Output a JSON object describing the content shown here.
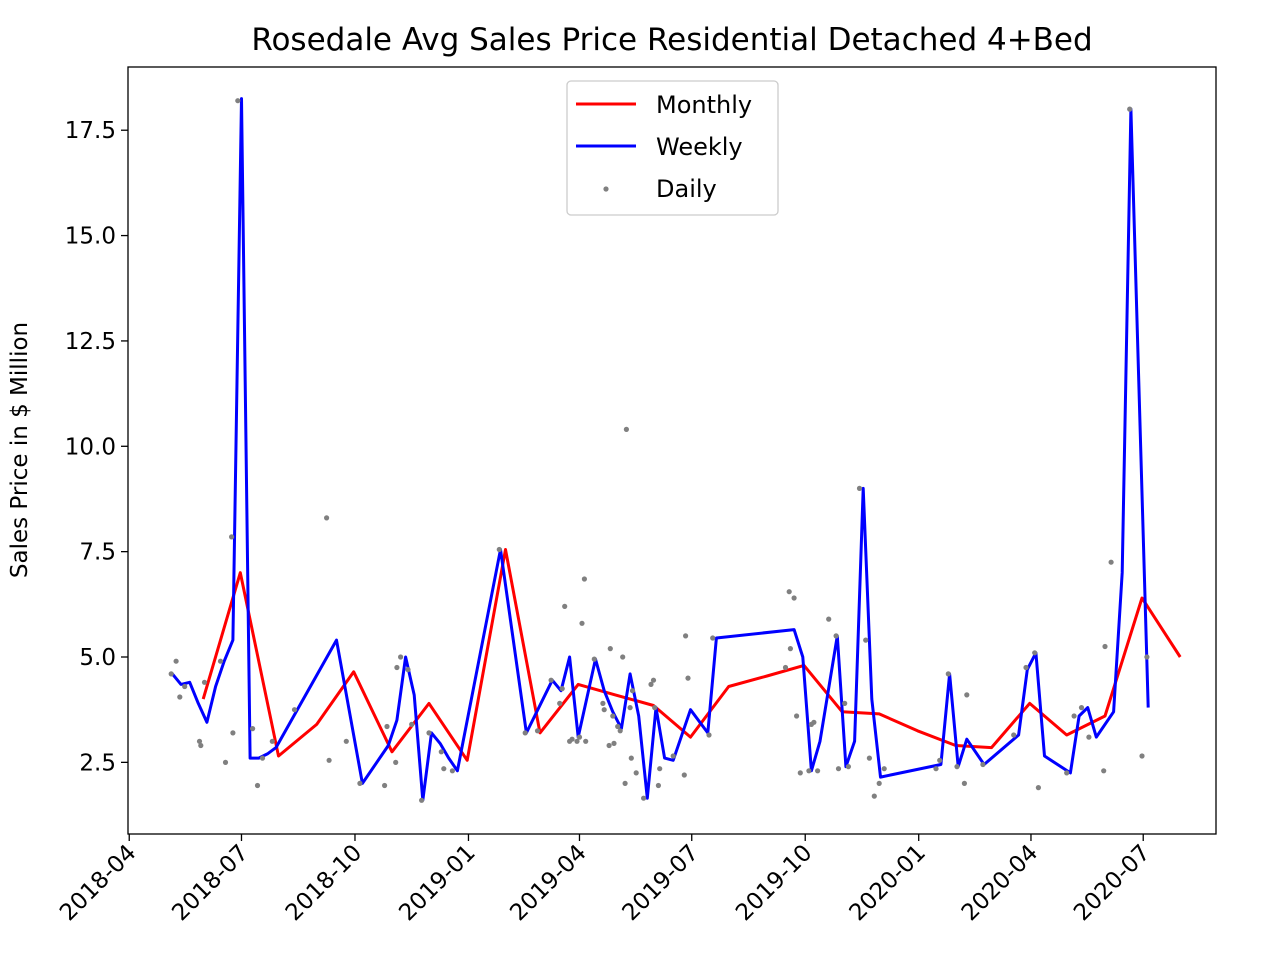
{
  "chart_data": {
    "type": "line",
    "title": "Rosedale Avg Sales Price Residential Detached 4+Bed",
    "xlabel": "",
    "ylabel": "Sales Price in $ Million",
    "xlim": [
      "2018-03-31",
      "2020-08-29"
    ],
    "ylim": [
      0.8,
      19.0
    ],
    "grid": false,
    "legend_position": "top-center",
    "x_ticks": [
      "2018-04",
      "2018-07",
      "2018-10",
      "2019-01",
      "2019-04",
      "2019-07",
      "2019-10",
      "2020-01",
      "2020-04",
      "2020-07"
    ],
    "x_tick_dates": [
      "2018-04-01",
      "2018-07-01",
      "2018-10-01",
      "2019-01-01",
      "2019-04-01",
      "2019-07-01",
      "2019-10-01",
      "2020-01-01",
      "2020-04-01",
      "2020-07-01"
    ],
    "y_ticks": [
      2.5,
      5.0,
      7.5,
      10.0,
      12.5,
      15.0,
      17.5
    ],
    "y_tick_labels": [
      "2.5",
      "5.0",
      "7.5",
      "10.0",
      "12.5",
      "15.0",
      "17.5"
    ],
    "series": [
      {
        "name": "Monthly",
        "kind": "line",
        "color": "#ff0000",
        "points": [
          [
            "2018-05-31",
            4.0
          ],
          [
            "2018-06-30",
            7.0
          ],
          [
            "2018-07-31",
            2.65
          ],
          [
            "2018-08-31",
            3.4
          ],
          [
            "2018-09-30",
            4.65
          ],
          [
            "2018-10-31",
            2.75
          ],
          [
            "2018-11-30",
            3.9
          ],
          [
            "2018-12-31",
            2.55
          ],
          [
            "2019-01-31",
            7.55
          ],
          [
            "2019-02-28",
            3.2
          ],
          [
            "2019-03-31",
            4.35
          ],
          [
            "2019-04-30",
            4.1
          ],
          [
            "2019-05-31",
            3.85
          ],
          [
            "2019-06-30",
            3.1
          ],
          [
            "2019-07-31",
            4.3
          ],
          [
            "2019-08-31",
            4.55
          ],
          [
            "2019-09-30",
            4.8
          ],
          [
            "2019-10-31",
            3.7
          ],
          [
            "2019-11-30",
            3.65
          ],
          [
            "2019-12-31",
            3.25
          ],
          [
            "2020-01-31",
            2.9
          ],
          [
            "2020-02-29",
            2.85
          ],
          [
            "2020-03-31",
            3.9
          ],
          [
            "2020-04-30",
            3.15
          ],
          [
            "2020-05-31",
            3.6
          ],
          [
            "2020-06-30",
            6.4
          ],
          [
            "2020-07-31",
            5.0
          ]
        ]
      },
      {
        "name": "Weekly",
        "kind": "line",
        "color": "#0000ff",
        "points": [
          [
            "2018-05-06",
            4.6
          ],
          [
            "2018-05-13",
            4.35
          ],
          [
            "2018-05-20",
            4.4
          ],
          [
            "2018-05-27",
            3.9
          ],
          [
            "2018-06-03",
            3.45
          ],
          [
            "2018-06-10",
            4.3
          ],
          [
            "2018-06-17",
            4.9
          ],
          [
            "2018-06-24",
            5.4
          ],
          [
            "2018-07-01",
            18.25
          ],
          [
            "2018-07-08",
            2.6
          ],
          [
            "2018-07-15",
            2.6
          ],
          [
            "2018-07-22",
            2.7
          ],
          [
            "2018-07-29",
            2.85
          ],
          [
            "2018-09-16",
            5.4
          ],
          [
            "2018-10-07",
            2.0
          ],
          [
            "2018-10-28",
            2.9
          ],
          [
            "2018-11-04",
            3.5
          ],
          [
            "2018-11-11",
            5.0
          ],
          [
            "2018-11-18",
            4.1
          ],
          [
            "2018-11-25",
            1.6
          ],
          [
            "2018-12-02",
            3.2
          ],
          [
            "2018-12-09",
            2.95
          ],
          [
            "2018-12-16",
            2.6
          ],
          [
            "2018-12-23",
            2.3
          ],
          [
            "2019-01-27",
            7.55
          ],
          [
            "2019-02-17",
            3.2
          ],
          [
            "2019-03-10",
            4.45
          ],
          [
            "2019-03-17",
            4.2
          ],
          [
            "2019-03-24",
            5.0
          ],
          [
            "2019-03-31",
            3.1
          ],
          [
            "2019-04-14",
            4.95
          ],
          [
            "2019-04-21",
            4.2
          ],
          [
            "2019-04-28",
            3.7
          ],
          [
            "2019-05-05",
            3.3
          ],
          [
            "2019-05-12",
            4.6
          ],
          [
            "2019-05-19",
            3.6
          ],
          [
            "2019-05-26",
            1.65
          ],
          [
            "2019-06-02",
            3.8
          ],
          [
            "2019-06-09",
            2.6
          ],
          [
            "2019-06-16",
            2.55
          ],
          [
            "2019-06-30",
            3.75
          ],
          [
            "2019-07-14",
            3.2
          ],
          [
            "2019-07-21",
            5.45
          ],
          [
            "2019-09-22",
            5.65
          ],
          [
            "2019-09-29",
            5.0
          ],
          [
            "2019-10-06",
            2.3
          ],
          [
            "2019-10-13",
            3.0
          ],
          [
            "2019-10-27",
            5.5
          ],
          [
            "2019-11-03",
            2.4
          ],
          [
            "2019-11-10",
            3.0
          ],
          [
            "2019-11-17",
            9.0
          ],
          [
            "2019-11-24",
            4.0
          ],
          [
            "2019-12-01",
            2.15
          ],
          [
            "2020-01-19",
            2.45
          ],
          [
            "2020-01-26",
            4.6
          ],
          [
            "2020-02-02",
            2.4
          ],
          [
            "2020-02-09",
            3.05
          ],
          [
            "2020-02-23",
            2.45
          ],
          [
            "2020-03-22",
            3.15
          ],
          [
            "2020-03-29",
            4.7
          ],
          [
            "2020-04-05",
            5.1
          ],
          [
            "2020-04-12",
            2.65
          ],
          [
            "2020-05-03",
            2.25
          ],
          [
            "2020-05-10",
            3.6
          ],
          [
            "2020-05-17",
            3.8
          ],
          [
            "2020-05-24",
            3.1
          ],
          [
            "2020-06-07",
            3.7
          ],
          [
            "2020-06-14",
            7.0
          ],
          [
            "2020-06-21",
            18.0
          ],
          [
            "2020-07-05",
            3.8
          ]
        ]
      },
      {
        "name": "Daily",
        "kind": "scatter",
        "color": "#808080",
        "points": [
          [
            "2018-05-05",
            4.6
          ],
          [
            "2018-05-09",
            4.9
          ],
          [
            "2018-05-12",
            4.05
          ],
          [
            "2018-05-16",
            4.3
          ],
          [
            "2018-05-28",
            3.0
          ],
          [
            "2018-05-29",
            2.9
          ],
          [
            "2018-06-01",
            4.4
          ],
          [
            "2018-06-14",
            4.9
          ],
          [
            "2018-06-18",
            2.5
          ],
          [
            "2018-06-23",
            7.85
          ],
          [
            "2018-06-24",
            3.2
          ],
          [
            "2018-06-28",
            18.2
          ],
          [
            "2018-07-10",
            3.3
          ],
          [
            "2018-07-14",
            1.95
          ],
          [
            "2018-07-18",
            2.6
          ],
          [
            "2018-07-26",
            3.0
          ],
          [
            "2018-08-13",
            3.75
          ],
          [
            "2018-09-08",
            8.3
          ],
          [
            "2018-09-10",
            2.55
          ],
          [
            "2018-09-24",
            3.0
          ],
          [
            "2018-10-05",
            2.0
          ],
          [
            "2018-10-25",
            1.95
          ],
          [
            "2018-10-27",
            3.35
          ],
          [
            "2018-11-03",
            2.5
          ],
          [
            "2018-11-04",
            4.75
          ],
          [
            "2018-11-07",
            5.0
          ],
          [
            "2018-11-13",
            4.7
          ],
          [
            "2018-11-16",
            3.4
          ],
          [
            "2018-11-24",
            1.6
          ],
          [
            "2018-11-30",
            3.2
          ],
          [
            "2018-12-10",
            2.75
          ],
          [
            "2018-12-12",
            2.35
          ],
          [
            "2018-12-19",
            2.3
          ],
          [
            "2019-01-26",
            7.55
          ],
          [
            "2019-02-16",
            3.2
          ],
          [
            "2019-02-26",
            3.25
          ],
          [
            "2019-03-09",
            4.45
          ],
          [
            "2019-03-16",
            3.9
          ],
          [
            "2019-03-18",
            4.25
          ],
          [
            "2019-03-20",
            6.2
          ],
          [
            "2019-03-24",
            3.0
          ],
          [
            "2019-03-26",
            3.05
          ],
          [
            "2019-03-30",
            3.0
          ],
          [
            "2019-04-01",
            3.1
          ],
          [
            "2019-04-03",
            5.8
          ],
          [
            "2019-04-05",
            6.85
          ],
          [
            "2019-04-06",
            3.0
          ],
          [
            "2019-04-13",
            4.95
          ],
          [
            "2019-04-20",
            3.9
          ],
          [
            "2019-04-21",
            3.75
          ],
          [
            "2019-04-25",
            2.9
          ],
          [
            "2019-04-26",
            5.2
          ],
          [
            "2019-04-28",
            3.6
          ],
          [
            "2019-04-29",
            2.95
          ],
          [
            "2019-05-02",
            3.35
          ],
          [
            "2019-05-04",
            3.25
          ],
          [
            "2019-05-06",
            5.0
          ],
          [
            "2019-05-08",
            2.0
          ],
          [
            "2019-05-09",
            10.4
          ],
          [
            "2019-05-12",
            3.8
          ],
          [
            "2019-05-13",
            2.6
          ],
          [
            "2019-05-14",
            4.2
          ],
          [
            "2019-05-17",
            2.25
          ],
          [
            "2019-05-23",
            1.65
          ],
          [
            "2019-05-29",
            4.35
          ],
          [
            "2019-05-31",
            4.45
          ],
          [
            "2019-06-01",
            3.8
          ],
          [
            "2019-06-04",
            1.95
          ],
          [
            "2019-06-05",
            2.35
          ],
          [
            "2019-06-16",
            2.65
          ],
          [
            "2019-06-25",
            2.2
          ],
          [
            "2019-06-26",
            5.5
          ],
          [
            "2019-06-28",
            4.5
          ],
          [
            "2019-07-15",
            3.15
          ],
          [
            "2019-07-18",
            5.45
          ],
          [
            "2019-09-15",
            4.75
          ],
          [
            "2019-09-18",
            6.55
          ],
          [
            "2019-09-19",
            5.2
          ],
          [
            "2019-09-22",
            6.4
          ],
          [
            "2019-09-24",
            3.6
          ],
          [
            "2019-09-27",
            2.25
          ],
          [
            "2019-10-04",
            2.3
          ],
          [
            "2019-10-06",
            3.4
          ],
          [
            "2019-10-08",
            3.45
          ],
          [
            "2019-10-11",
            2.3
          ],
          [
            "2019-10-20",
            5.9
          ],
          [
            "2019-10-26",
            5.5
          ],
          [
            "2019-10-28",
            2.35
          ],
          [
            "2019-11-02",
            3.9
          ],
          [
            "2019-11-05",
            2.4
          ],
          [
            "2019-11-14",
            9.0
          ],
          [
            "2019-11-19",
            5.4
          ],
          [
            "2019-11-22",
            2.6
          ],
          [
            "2019-11-26",
            1.7
          ],
          [
            "2019-11-30",
            2.0
          ],
          [
            "2019-12-04",
            2.35
          ],
          [
            "2020-01-15",
            2.35
          ],
          [
            "2020-01-18",
            2.55
          ],
          [
            "2020-01-25",
            4.6
          ],
          [
            "2020-02-01",
            2.4
          ],
          [
            "2020-02-07",
            2.0
          ],
          [
            "2020-02-09",
            4.1
          ],
          [
            "2020-02-22",
            2.45
          ],
          [
            "2020-03-18",
            3.15
          ],
          [
            "2020-03-28",
            4.75
          ],
          [
            "2020-04-04",
            5.1
          ],
          [
            "2020-04-07",
            1.9
          ],
          [
            "2020-04-30",
            2.25
          ],
          [
            "2020-05-06",
            3.6
          ],
          [
            "2020-05-12",
            3.8
          ],
          [
            "2020-05-18",
            3.1
          ],
          [
            "2020-05-30",
            2.3
          ],
          [
            "2020-05-31",
            5.25
          ],
          [
            "2020-06-05",
            7.25
          ],
          [
            "2020-06-20",
            18.0
          ],
          [
            "2020-06-30",
            2.65
          ],
          [
            "2020-07-04",
            5.0
          ]
        ]
      }
    ]
  }
}
